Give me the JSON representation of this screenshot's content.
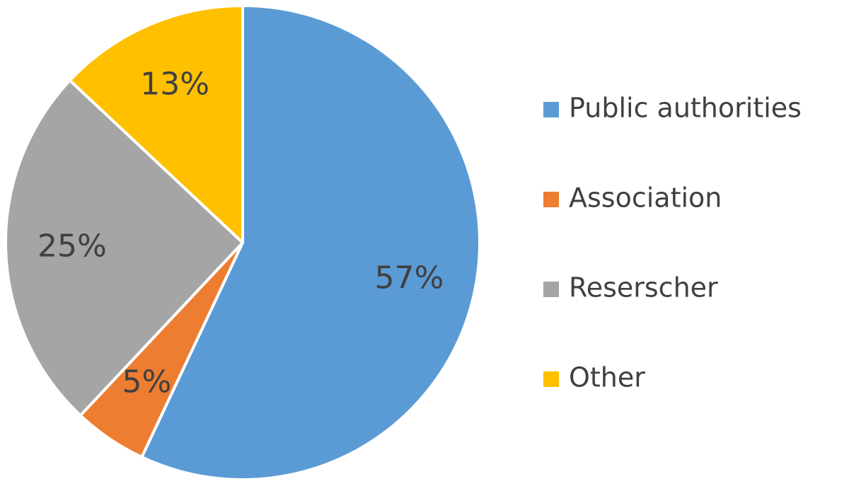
{
  "chart_data": {
    "type": "pie",
    "categories": [
      "Public authorities",
      "Association",
      "Reserscher",
      "Other"
    ],
    "values": [
      57,
      5,
      25,
      13
    ],
    "value_labels": [
      "57%",
      "5%",
      "25%",
      "13%"
    ],
    "colors": [
      "#5b9bd5",
      "#ed7d31",
      "#a5a5a5",
      "#ffc000"
    ],
    "legend": "right"
  }
}
